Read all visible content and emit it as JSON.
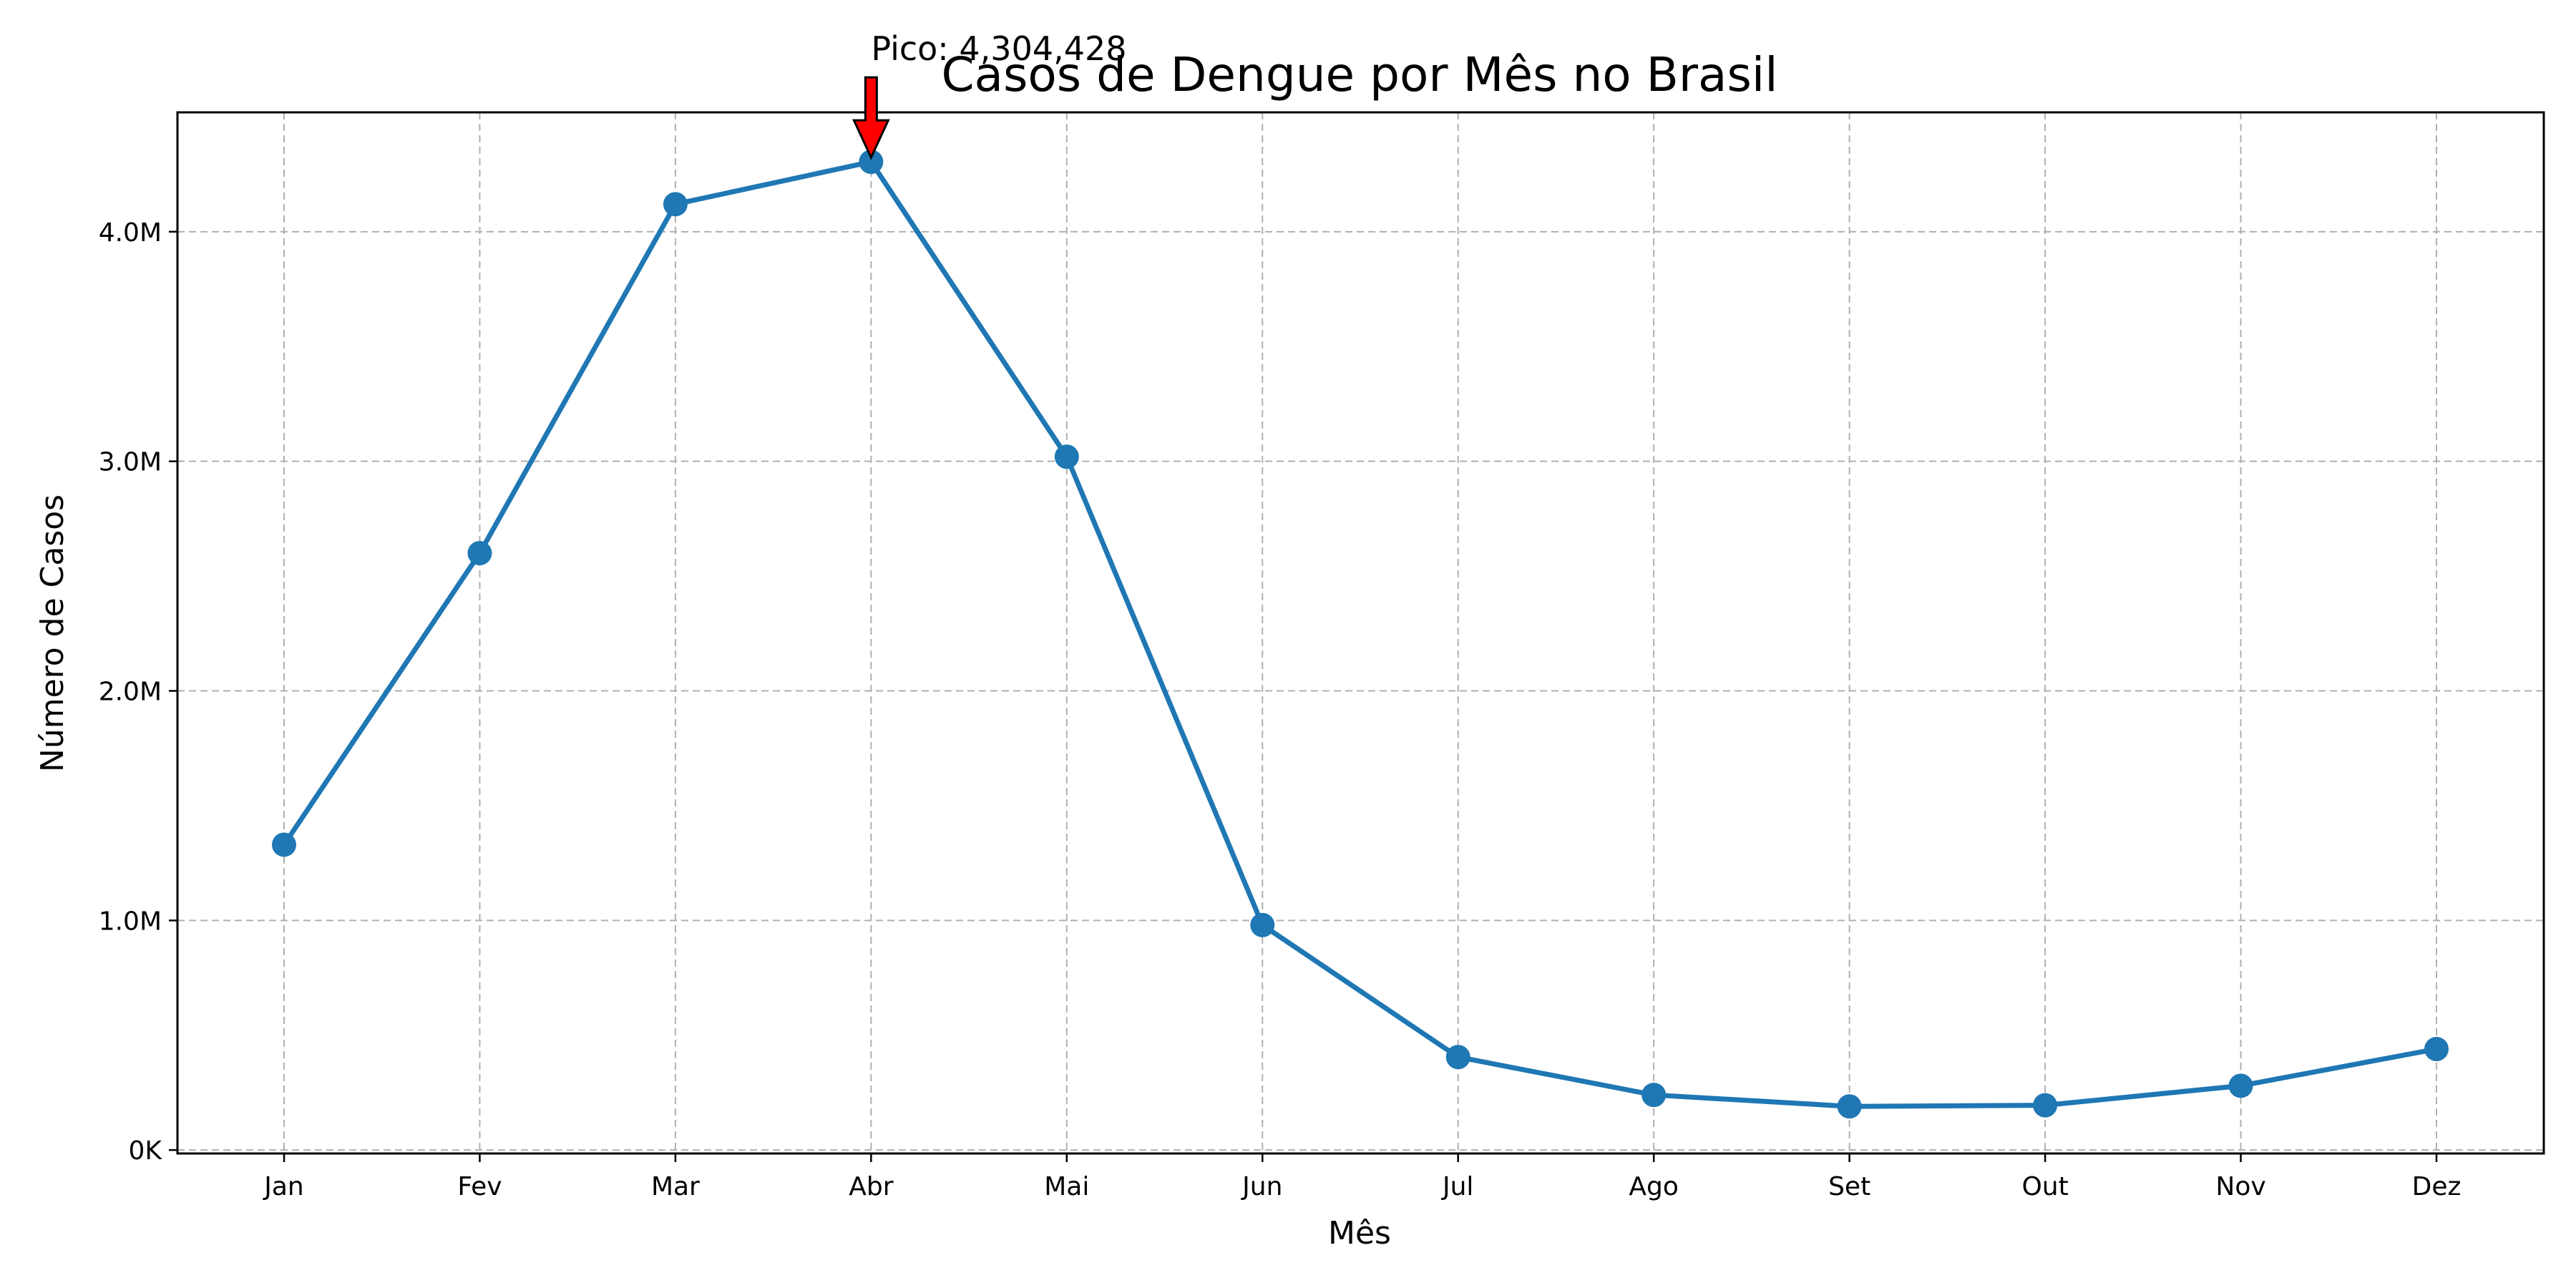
{
  "chart_data": {
    "type": "line",
    "title": "Casos de Dengue por Mês no Brasil",
    "xlabel": "Mês",
    "ylabel": "Número de Casos",
    "categories": [
      "Jan",
      "Fev",
      "Mar",
      "Abr",
      "Mai",
      "Jun",
      "Jul",
      "Ago",
      "Set",
      "Out",
      "Nov",
      "Dez"
    ],
    "series": [
      {
        "values": [
          1330000,
          2600000,
          4120000,
          4304428,
          3020000,
          980000,
          405000,
          240000,
          190000,
          195000,
          280000,
          440000
        ]
      }
    ],
    "ylim": [
      -15000,
      4520000
    ],
    "yticks": [
      0,
      1000000,
      2000000,
      3000000,
      4000000
    ],
    "ytick_labels": [
      "0K",
      "1.0M",
      "2.0M",
      "3.0M",
      "4.0M"
    ],
    "grid": true,
    "line_color": "#1f77b4",
    "annotation": {
      "text": "Pico: 4,304,428",
      "category": "Abr",
      "value": 4304428,
      "arrow_color": "#ff0000"
    }
  }
}
